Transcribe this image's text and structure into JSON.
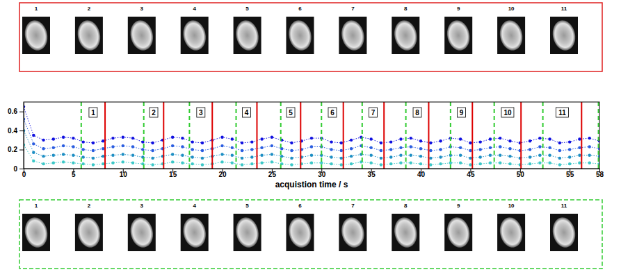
{
  "chart_data": {
    "type": "line",
    "marker": "circle",
    "line_style": "dotted",
    "x_label": "acquistion time / s",
    "x": [
      0,
      1,
      2,
      3,
      4,
      5,
      6,
      7,
      8,
      9,
      10,
      11,
      12,
      13,
      14,
      15,
      16,
      17,
      18,
      19,
      20,
      21,
      22,
      23,
      24,
      25,
      26,
      27,
      28,
      29,
      30,
      31,
      32,
      33,
      34,
      35,
      36,
      37,
      38,
      39,
      40,
      41,
      42,
      43,
      44,
      45,
      46,
      47,
      48,
      49,
      50,
      51,
      52,
      53,
      54,
      55,
      56,
      57,
      58
    ],
    "series": [
      {
        "color": "#1010e0",
        "values": [
          0.65,
          0.35,
          0.3,
          0.31,
          0.33,
          0.32,
          0.28,
          0.27,
          0.29,
          0.32,
          0.33,
          0.32,
          0.28,
          0.27,
          0.3,
          0.33,
          0.32,
          0.28,
          0.27,
          0.3,
          0.33,
          0.31,
          0.27,
          0.28,
          0.31,
          0.33,
          0.3,
          0.27,
          0.29,
          0.32,
          0.32,
          0.28,
          0.27,
          0.3,
          0.33,
          0.31,
          0.27,
          0.28,
          0.31,
          0.32,
          0.29,
          0.27,
          0.29,
          0.32,
          0.31,
          0.27,
          0.28,
          0.31,
          0.32,
          0.29,
          0.27,
          0.29,
          0.32,
          0.31,
          0.27,
          0.28,
          0.31,
          0.32,
          0.29
        ]
      },
      {
        "color": "#2a5de0",
        "values": [
          0.52,
          0.26,
          0.21,
          0.22,
          0.24,
          0.23,
          0.2,
          0.19,
          0.21,
          0.23,
          0.24,
          0.23,
          0.2,
          0.19,
          0.21,
          0.24,
          0.23,
          0.2,
          0.19,
          0.21,
          0.24,
          0.22,
          0.19,
          0.2,
          0.22,
          0.24,
          0.21,
          0.19,
          0.2,
          0.23,
          0.23,
          0.2,
          0.19,
          0.21,
          0.24,
          0.22,
          0.19,
          0.2,
          0.22,
          0.23,
          0.21,
          0.19,
          0.2,
          0.23,
          0.22,
          0.19,
          0.2,
          0.22,
          0.23,
          0.21,
          0.19,
          0.2,
          0.23,
          0.22,
          0.19,
          0.2,
          0.22,
          0.23,
          0.21
        ]
      },
      {
        "color": "#1e8fc4",
        "values": [
          0.4,
          0.17,
          0.13,
          0.14,
          0.15,
          0.14,
          0.12,
          0.11,
          0.13,
          0.14,
          0.15,
          0.14,
          0.12,
          0.11,
          0.13,
          0.15,
          0.14,
          0.12,
          0.11,
          0.13,
          0.15,
          0.14,
          0.11,
          0.12,
          0.14,
          0.15,
          0.13,
          0.11,
          0.12,
          0.14,
          0.14,
          0.12,
          0.11,
          0.13,
          0.15,
          0.14,
          0.11,
          0.12,
          0.14,
          0.14,
          0.13,
          0.11,
          0.12,
          0.14,
          0.14,
          0.11,
          0.12,
          0.14,
          0.14,
          0.13,
          0.11,
          0.12,
          0.14,
          0.14,
          0.11,
          0.12,
          0.14,
          0.14,
          0.13
        ]
      },
      {
        "color": "#3cc8c8",
        "values": [
          0.25,
          0.08,
          0.05,
          0.06,
          0.07,
          0.06,
          0.05,
          0.04,
          0.05,
          0.06,
          0.07,
          0.06,
          0.05,
          0.04,
          0.05,
          0.07,
          0.06,
          0.05,
          0.04,
          0.05,
          0.07,
          0.06,
          0.04,
          0.05,
          0.06,
          0.07,
          0.05,
          0.04,
          0.05,
          0.06,
          0.06,
          0.05,
          0.04,
          0.05,
          0.07,
          0.06,
          0.04,
          0.05,
          0.06,
          0.06,
          0.05,
          0.04,
          0.05,
          0.06,
          0.06,
          0.04,
          0.05,
          0.06,
          0.06,
          0.05,
          0.04,
          0.05,
          0.06,
          0.06,
          0.04,
          0.05,
          0.06,
          0.06,
          0.05
        ]
      }
    ],
    "xlim": [
      0,
      58
    ],
    "xticks": [
      0,
      5,
      10,
      15,
      20,
      25,
      30,
      35,
      40,
      45,
      50,
      55,
      58
    ],
    "ylim": [
      0,
      0.7
    ],
    "yticks": [
      0,
      0.2,
      0.4,
      0.6
    ],
    "window_starts": [
      5.8,
      12.1,
      16.7,
      21.4,
      25.9,
      30.0,
      34.1,
      38.5,
      43.0,
      47.4,
      52.3,
      57.9
    ],
    "window_ends": [
      8.2,
      14.1,
      19.0,
      23.5,
      27.9,
      32.2,
      36.3,
      40.8,
      45.2,
      50.1,
      56.2
    ],
    "window_labels": [
      "1",
      "2",
      "3",
      "4",
      "5",
      "6",
      "7",
      "8",
      "9",
      "10",
      "11"
    ]
  },
  "top_images": {
    "labels": [
      "1",
      "2",
      "3",
      "4",
      "5",
      "6",
      "7",
      "8",
      "9",
      "10",
      "11"
    ]
  },
  "bottom_images": {
    "labels": [
      "1",
      "2",
      "3",
      "4",
      "5",
      "6",
      "7",
      "8",
      "9",
      "10",
      "11"
    ]
  }
}
